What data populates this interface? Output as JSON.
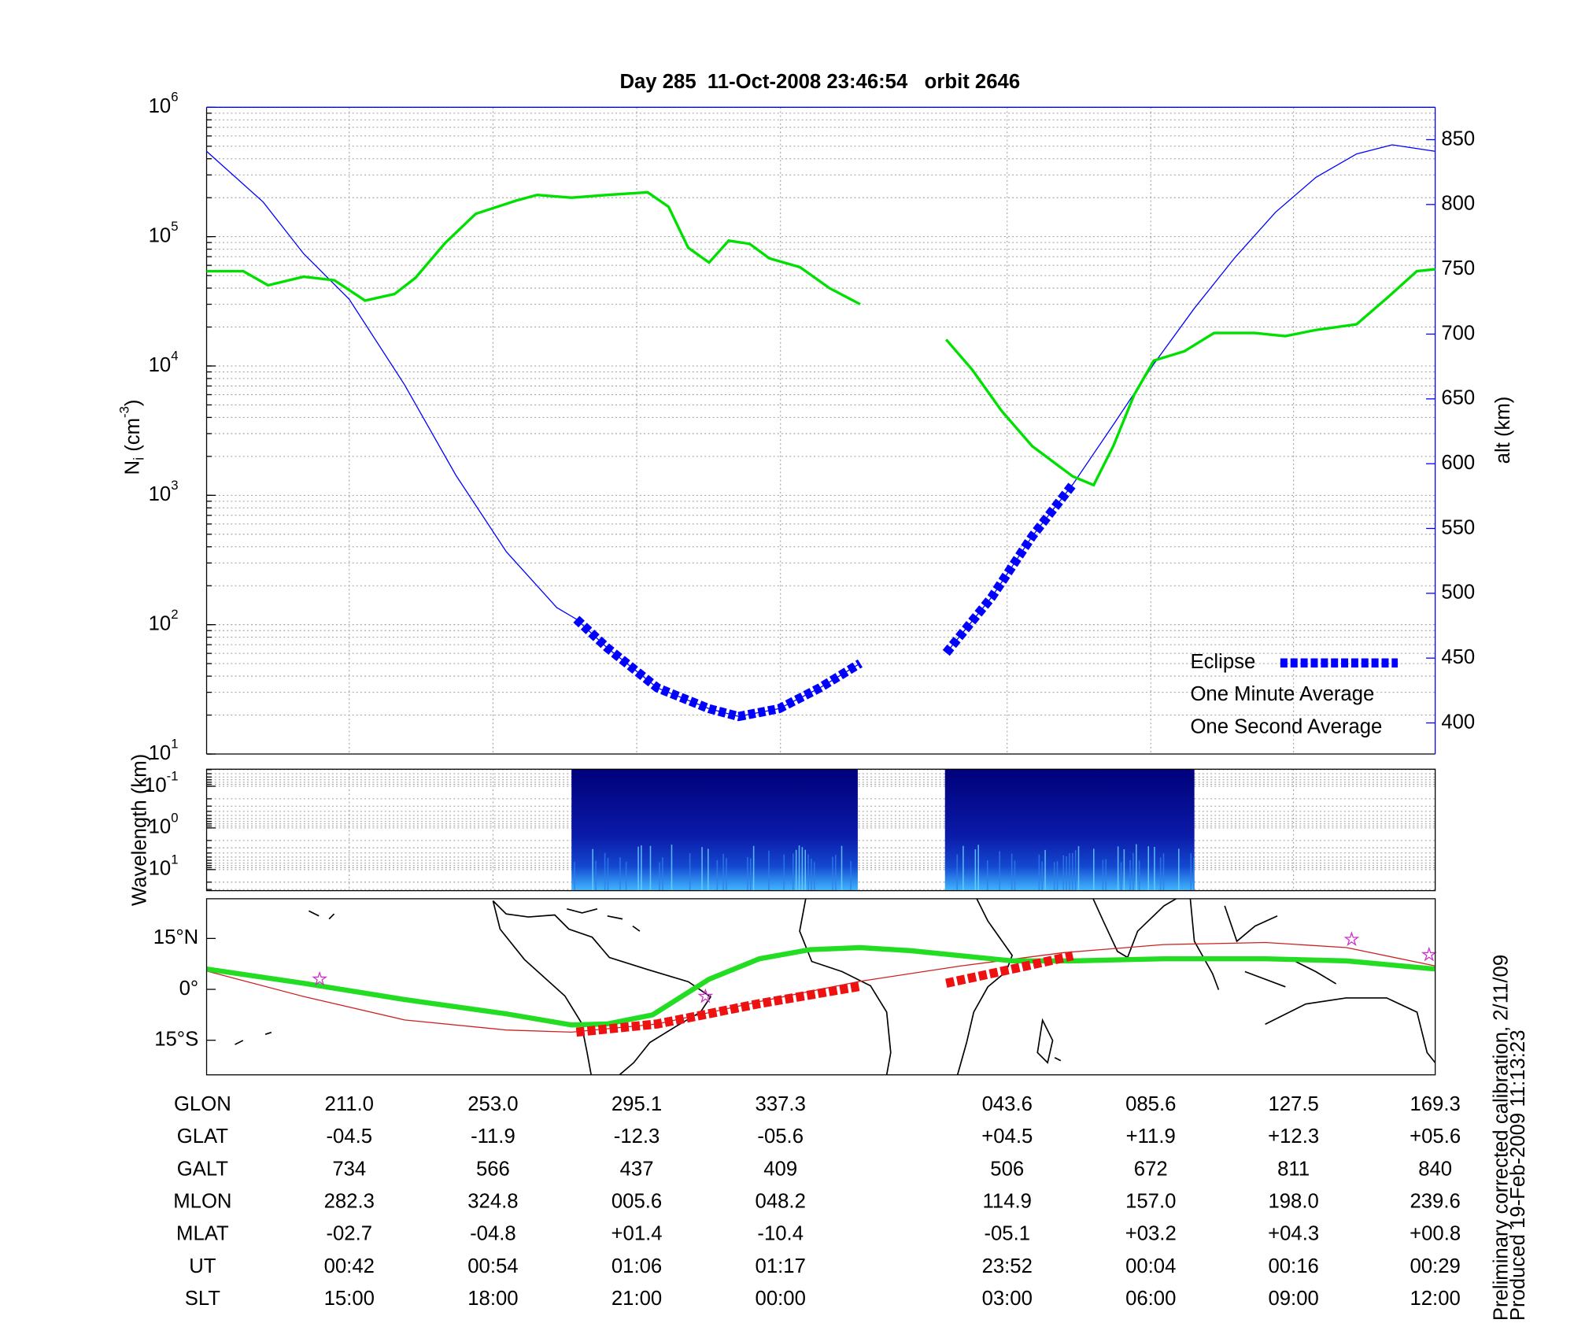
{
  "chart_data": [
    {
      "type": "line",
      "title": "Day 285  11-Oct-2008 23:46:54   orbit 2646",
      "ylabel": [
        "N",
        "i",
        " (cm",
        "-3",
        ")"
      ],
      "y2label": "alt (km)",
      "yscale": "log",
      "xlim": [
        0,
        100
      ],
      "xgrid": [
        11.61,
        23.31,
        35.01,
        46.71,
        65.16,
        76.85,
        88.47
      ],
      "ylim": [
        10,
        1000000
      ],
      "yticks": [
        {
          "value": 10,
          "label": "10",
          "exp": "1"
        },
        {
          "value": 100,
          "label": "10",
          "exp": "2"
        },
        {
          "value": 1000,
          "label": "10",
          "exp": "3"
        },
        {
          "value": 10000,
          "label": "10",
          "exp": "4"
        },
        {
          "value": 100000,
          "label": "10",
          "exp": "5"
        },
        {
          "value": 1000000,
          "label": "10",
          "exp": "6"
        }
      ],
      "y2lim": [
        376,
        875
      ],
      "y2ticks": [
        400,
        450,
        500,
        550,
        600,
        650,
        700,
        750,
        800,
        850
      ],
      "y2color": "#0000ff",
      "grid": true,
      "legend": "lower right",
      "series": [
        {
          "name": "Eclipse",
          "color": "#0000ff",
          "axis": "y2",
          "style": "dashed",
          "x": [
            30.1,
            32.6,
            36.7,
            40.9,
            43.3,
            46.6,
            49.9,
            53.2,
            56.0,
            60.2,
            63.9,
            67.2,
            70.5
          ],
          "values": [
            480,
            458,
            427,
            411,
            405,
            411,
            427,
            446,
            null,
            454,
            497,
            544,
            584
          ]
        },
        {
          "name": "One Minute Average",
          "color": "#000000",
          "axis": "y",
          "style": "solid",
          "x": [
            0,
            3.0,
            5.0,
            7.9,
            10.4,
            12.9,
            15.3,
            17.0,
            19.4,
            21.9,
            25.2,
            26.9,
            29.7,
            32.6,
            35.9,
            37.6,
            39.2,
            40.9,
            42.5,
            44.2,
            45.8,
            48.3,
            50.7,
            53.2,
            56.0,
            60.2,
            62.3,
            64.7,
            67.2,
            69.3,
            70.5,
            72.2,
            73.8,
            75.5,
            77.1,
            79.6,
            82.0,
            85.3,
            87.8,
            90.3,
            93.6,
            96.0,
            98.5,
            100
          ],
          "values": [
            54000,
            54000,
            42000,
            49000,
            46000,
            32000,
            36000,
            48000,
            89000,
            150000,
            190000,
            210000,
            200000,
            210000,
            220000,
            170000,
            82000,
            63000,
            93000,
            88000,
            68000,
            58000,
            40000,
            30000,
            null,
            16000,
            9400,
            4500,
            2400,
            1700,
            1400,
            1200,
            2400,
            6000,
            11000,
            13000,
            18000,
            18000,
            17000,
            19000,
            21000,
            33000,
            54000,
            56000
          ]
        },
        {
          "name": "One Second Average",
          "color": "#00e000",
          "axis": "y",
          "style": "solid",
          "x": [
            0,
            3.0,
            5.0,
            7.9,
            10.4,
            12.9,
            15.3,
            17.0,
            19.4,
            21.9,
            25.2,
            26.9,
            29.7,
            32.6,
            35.9,
            37.6,
            39.2,
            40.9,
            42.5,
            44.2,
            45.8,
            48.3,
            50.7,
            53.2,
            56.0,
            60.2,
            62.3,
            64.7,
            67.2,
            69.3,
            70.5,
            72.2,
            73.8,
            75.5,
            77.1,
            79.6,
            82.0,
            85.3,
            87.8,
            90.3,
            93.6,
            96.0,
            98.5,
            100
          ],
          "values": [
            54000,
            54000,
            42000,
            49000,
            46000,
            32000,
            36000,
            48000,
            89000,
            150000,
            190000,
            210000,
            200000,
            210000,
            220000,
            170000,
            82000,
            63000,
            93000,
            88000,
            68000,
            58000,
            40000,
            30000,
            null,
            16000,
            9400,
            4500,
            2400,
            1700,
            1400,
            1200,
            2400,
            6000,
            11000,
            13000,
            18000,
            18000,
            17000,
            19000,
            21000,
            33000,
            54000,
            56000
          ]
        }
      ],
      "altitude": {
        "color": "#0000ff",
        "axis": "y2",
        "x": [
          0,
          4.6,
          7.9,
          11.6,
          16.1,
          20.3,
          24.4,
          28.5,
          30.1,
          32.6,
          36.7,
          40.9,
          43.3,
          46.6,
          49.9,
          53.2,
          56.0,
          60.2,
          63.9,
          67.2,
          70.5,
          73.8,
          77.1,
          80.4,
          83.7,
          87.0,
          90.3,
          93.6,
          96.5,
          100
        ],
        "values": [
          841,
          802,
          762,
          727,
          661,
          591,
          532,
          489,
          480,
          458,
          427,
          411,
          405,
          411,
          427,
          446,
          null,
          454,
          497,
          544,
          584,
          630,
          677,
          720,
          759,
          794,
          821,
          839,
          846,
          841
        ]
      }
    },
    {
      "type": "spectrogram",
      "ylabel": "Wavelength (km)",
      "yscale": "log",
      "xlim": [
        0,
        100
      ],
      "xgrid": [
        11.61,
        23.31,
        35.01,
        46.71,
        65.16,
        76.85,
        88.47
      ],
      "ylim": [
        32,
        0.039
      ],
      "yticks": [
        {
          "value": 0.1,
          "label": "10",
          "exp": "-1"
        },
        {
          "value": 1,
          "label": "10",
          "exp": "0"
        },
        {
          "value": 10,
          "label": "10",
          "exp": "1"
        }
      ],
      "segments": [
        [
          29.7,
          53.0
        ],
        [
          60.1,
          80.4
        ]
      ]
    },
    {
      "type": "map",
      "xlim": [
        0,
        100
      ],
      "xgrid": [
        11.61,
        23.31,
        35.01,
        46.71,
        65.16,
        76.85,
        88.47
      ],
      "ylim": [
        -25.2,
        26.7
      ],
      "yticks": [
        {
          "value": 15,
          "label": "15°N"
        },
        {
          "value": 0,
          "label": "0°"
        },
        {
          "value": -15,
          "label": "15°S"
        }
      ],
      "series": [
        {
          "color": "#cc2222",
          "style": "thin",
          "x": [
            0,
            7.9,
            16.1,
            24.4,
            29.7,
            36.7,
            45.0,
            53.2,
            61.4,
            69.7,
            77.9,
            86.2,
            92.8,
            100
          ],
          "values": [
            5.4,
            -2.1,
            -9.0,
            -12.0,
            -12.6,
            -10.2,
            -3.6,
            2.4,
            6.9,
            10.8,
            13.2,
            13.8,
            12.3,
            6.9
          ]
        },
        {
          "color": "#22dd22",
          "style": "thick",
          "x": [
            0,
            7.9,
            16.1,
            24.4,
            29.7,
            32.6,
            36.3,
            40.9,
            45.0,
            49.1,
            53.2,
            57.3,
            65.6,
            70.5,
            77.9,
            86.2,
            92.8,
            100
          ],
          "values": [
            6.0,
            1.8,
            -3.0,
            -7.2,
            -10.5,
            -10.2,
            -7.5,
            3.0,
            9.0,
            11.7,
            12.3,
            11.4,
            8.4,
            8.4,
            9.0,
            9.0,
            8.4,
            6.0
          ]
        },
        {
          "color": "#ee1111",
          "style": "dashed",
          "x": [
            30.1,
            36.7,
            45.0,
            53.2,
            56.0,
            60.2,
            65.6,
            70.5
          ],
          "values": [
            -12.6,
            -10.2,
            -4.2,
            0.9,
            null,
            1.8,
            6.0,
            9.9
          ]
        }
      ],
      "stars": {
        "color": "#cc33cc",
        "x": [
          9.2,
          40.6,
          93.2,
          99.5
        ],
        "values": [
          3.0,
          -2.1,
          14.7,
          10.2
        ]
      }
    }
  ],
  "table": {
    "rows": [
      {
        "label": "GLON",
        "values": [
          "211.0",
          "253.0",
          "295.1",
          "337.3",
          "043.6",
          "085.6",
          "127.5",
          "169.3"
        ]
      },
      {
        "label": "GLAT",
        "values": [
          "-04.5",
          "-11.9",
          "-12.3",
          "-05.6",
          "+04.5",
          "+11.9",
          "+12.3",
          "+05.6"
        ]
      },
      {
        "label": "GALT",
        "values": [
          "734",
          "566",
          "437",
          "409",
          "506",
          "672",
          "811",
          "840"
        ]
      },
      {
        "label": "MLON",
        "values": [
          "282.3",
          "324.8",
          "005.6",
          "048.2",
          "114.9",
          "157.0",
          "198.0",
          "239.6"
        ]
      },
      {
        "label": "MLAT",
        "values": [
          "-02.7",
          "-04.8",
          "+01.4",
          "-10.4",
          "-05.1",
          "+03.2",
          "+04.3",
          "+00.8"
        ]
      },
      {
        "label": "UT",
        "values": [
          "00:42",
          "00:54",
          "01:06",
          "01:17",
          "23:52",
          "00:04",
          "00:16",
          "00:29"
        ]
      },
      {
        "label": "SLT",
        "values": [
          "15:00",
          "18:00",
          "21:00",
          "00:00",
          "03:00",
          "06:00",
          "09:00",
          "12:00"
        ]
      }
    ]
  },
  "notes": [
    "Preliminary corrected calibration, 2/11/09",
    "Produced 19-Feb-2009 11:13:23"
  ]
}
